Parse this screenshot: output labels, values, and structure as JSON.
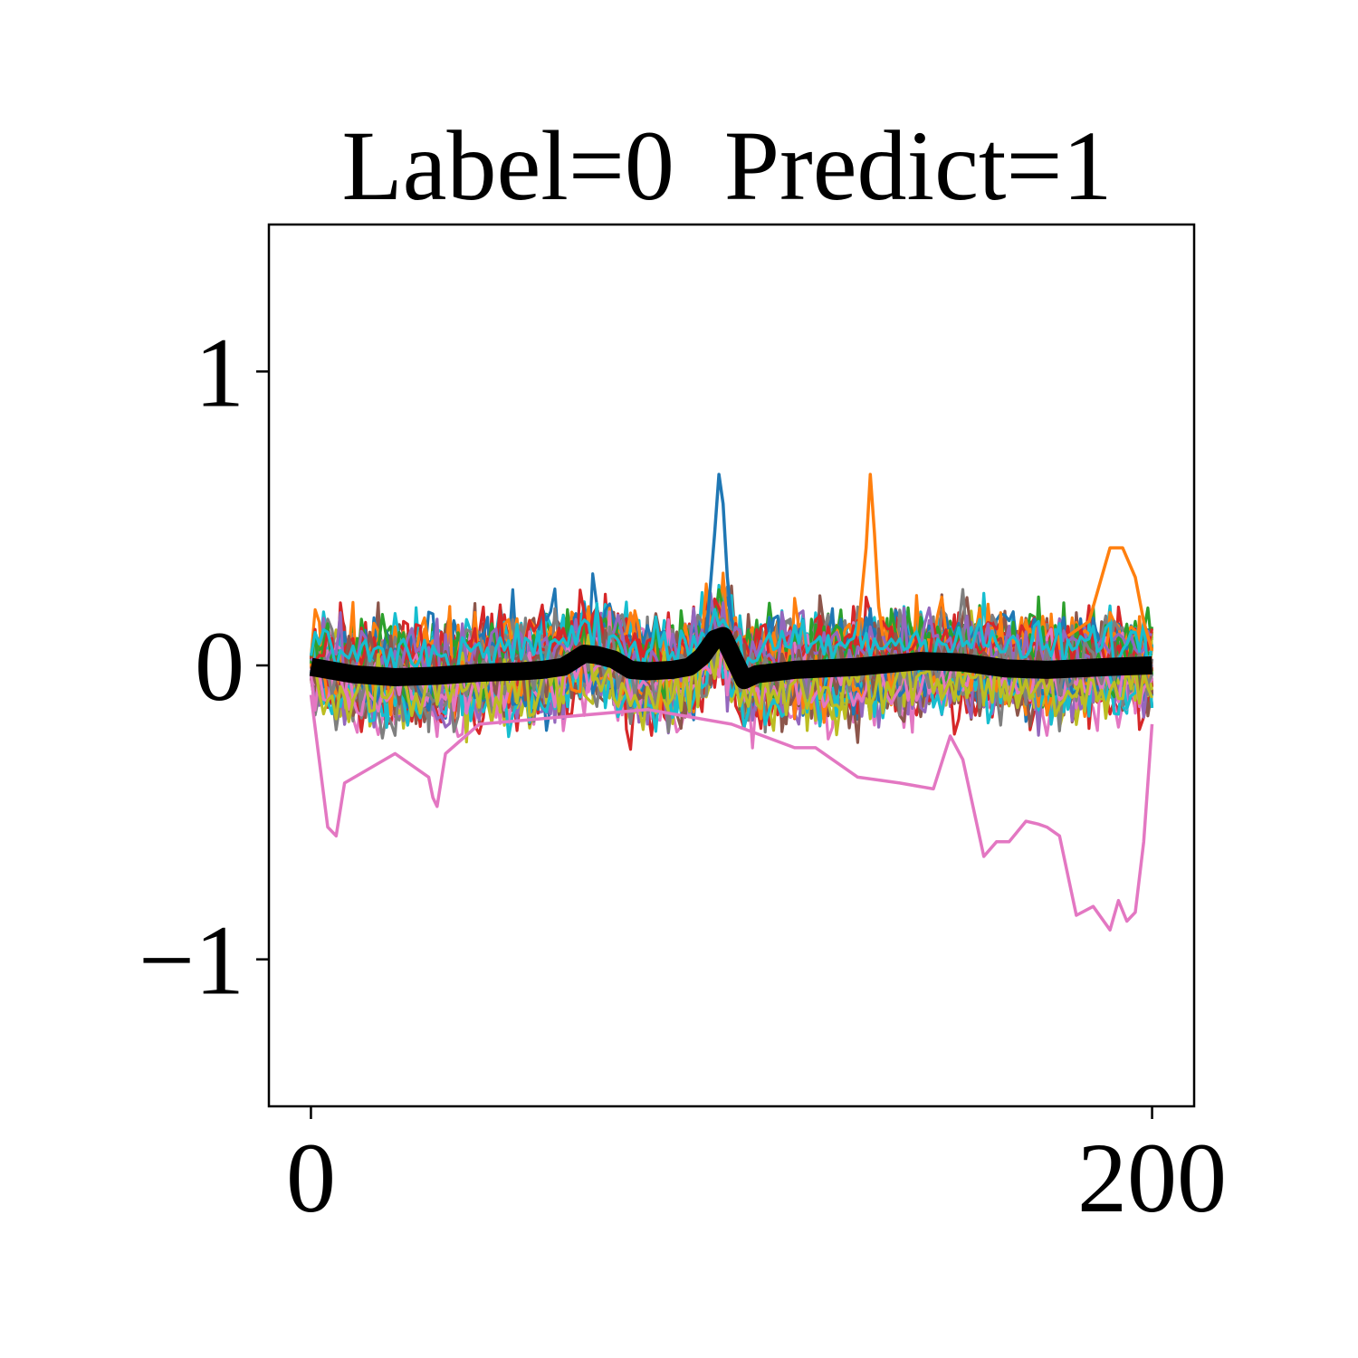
{
  "chart_data": {
    "type": "line",
    "title": "Label=0  Predict=1",
    "xlabel": "",
    "ylabel": "",
    "xlim": [
      -10,
      210
    ],
    "ylim": [
      -1.5,
      1.5
    ],
    "x_ticks": [
      0,
      200
    ],
    "x_tick_labels": [
      "0",
      "200"
    ],
    "y_ticks": [
      1,
      0,
      -1
    ],
    "y_tick_labels": [
      "1",
      "0",
      "−1"
    ],
    "grid": false,
    "legend": "none",
    "x": {
      "start": 0,
      "end": 200
    },
    "series_colors": [
      "#1f77b4",
      "#ff7f0e",
      "#2ca02c",
      "#d62728",
      "#9467bd",
      "#8c564b",
      "#e377c2",
      "#7f7f7f",
      "#bcbd22",
      "#17becf"
    ],
    "noisy_series_count": 60,
    "noise_amplitude": 0.12,
    "mean_series": {
      "color": "#000000",
      "points": [
        [
          0,
          -0.005
        ],
        [
          10,
          -0.03
        ],
        [
          20,
          -0.04
        ],
        [
          30,
          -0.035
        ],
        [
          40,
          -0.025
        ],
        [
          50,
          -0.02
        ],
        [
          55,
          -0.015
        ],
        [
          60,
          -0.005
        ],
        [
          65,
          0.04
        ],
        [
          68,
          0.035
        ],
        [
          72,
          0.02
        ],
        [
          76,
          -0.015
        ],
        [
          80,
          -0.02
        ],
        [
          86,
          -0.015
        ],
        [
          90,
          -0.005
        ],
        [
          93,
          0.03
        ],
        [
          96,
          0.09
        ],
        [
          98,
          0.1
        ],
        [
          100,
          0.04
        ],
        [
          103,
          -0.05
        ],
        [
          106,
          -0.03
        ],
        [
          115,
          -0.015
        ],
        [
          130,
          -0.005
        ],
        [
          145,
          0.015
        ],
        [
          155,
          0.01
        ],
        [
          165,
          -0.01
        ],
        [
          175,
          -0.015
        ],
        [
          190,
          -0.005
        ],
        [
          200,
          0.0
        ]
      ]
    },
    "highlighted_outliers": [
      {
        "color": "#e377c2",
        "points": [
          [
            0,
            -0.1
          ],
          [
            4,
            -0.55
          ],
          [
            6,
            -0.58
          ],
          [
            8,
            -0.4
          ],
          [
            20,
            -0.3
          ],
          [
            28,
            -0.38
          ],
          [
            29,
            -0.45
          ],
          [
            30,
            -0.48
          ],
          [
            32,
            -0.3
          ],
          [
            40,
            -0.2
          ],
          [
            80,
            -0.15
          ],
          [
            100,
            -0.2
          ],
          [
            115,
            -0.28
          ],
          [
            120,
            -0.28
          ],
          [
            130,
            -0.38
          ],
          [
            140,
            -0.4
          ],
          [
            148,
            -0.42
          ],
          [
            152,
            -0.24
          ],
          [
            155,
            -0.32
          ],
          [
            160,
            -0.65
          ],
          [
            163,
            -0.6
          ],
          [
            166,
            -0.6
          ],
          [
            170,
            -0.53
          ],
          [
            173,
            -0.54
          ],
          [
            175,
            -0.55
          ],
          [
            178,
            -0.58
          ],
          [
            182,
            -0.85
          ],
          [
            186,
            -0.82
          ],
          [
            188,
            -0.86
          ],
          [
            190,
            -0.9
          ],
          [
            192,
            -0.8
          ],
          [
            194,
            -0.87
          ],
          [
            196,
            -0.84
          ],
          [
            198,
            -0.6
          ],
          [
            200,
            -0.2
          ]
        ]
      },
      {
        "color": "#1f77b4",
        "points": [
          [
            94,
            0.1
          ],
          [
            96,
            0.45
          ],
          [
            97,
            0.65
          ],
          [
            98,
            0.55
          ],
          [
            99,
            0.3
          ],
          [
            100,
            0.15
          ]
        ]
      },
      {
        "color": "#ff7f0e",
        "points": [
          [
            130,
            0.1
          ],
          [
            132,
            0.4
          ],
          [
            133,
            0.65
          ],
          [
            134,
            0.45
          ],
          [
            135,
            0.2
          ],
          [
            136,
            0.1
          ]
        ]
      },
      {
        "color": "#ff7f0e",
        "points": [
          [
            180,
            0.1
          ],
          [
            185,
            0.15
          ],
          [
            188,
            0.3
          ],
          [
            190,
            0.4
          ],
          [
            193,
            0.4
          ],
          [
            196,
            0.3
          ],
          [
            198,
            0.15
          ],
          [
            200,
            0.05
          ]
        ]
      }
    ]
  }
}
